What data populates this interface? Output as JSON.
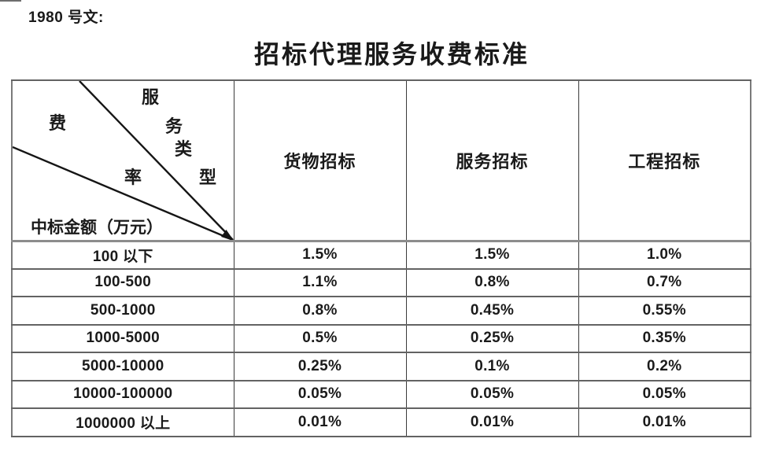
{
  "page": {
    "doc_ref": "1980 号文:",
    "title": "招标代理服务收费标准",
    "ink_color": "#1a1a1a",
    "background_color": "#ffffff"
  },
  "table": {
    "corner": {
      "fee_char": "费",
      "rate_char": "率",
      "service_type_chars": [
        "服",
        "务",
        "类",
        "型"
      ],
      "row_axis_label": "中标金额（万元）"
    },
    "columns": [
      "货物招标",
      "服务招标",
      "工程招标"
    ],
    "rows": [
      {
        "range": "100 以下",
        "values": [
          "1.5%",
          "1.5%",
          "1.0%"
        ]
      },
      {
        "range": "100-500",
        "values": [
          "1.1%",
          "0.8%",
          "0.7%"
        ]
      },
      {
        "range": "500-1000",
        "values": [
          "0.8%",
          "0.45%",
          "0.55%"
        ]
      },
      {
        "range": "1000-5000",
        "values": [
          "0.5%",
          "0.25%",
          "0.35%"
        ]
      },
      {
        "range": "5000-10000",
        "values": [
          "0.25%",
          "0.1%",
          "0.2%"
        ]
      },
      {
        "range": "10000-100000",
        "values": [
          "0.05%",
          "0.05%",
          "0.05%"
        ]
      },
      {
        "range": "1000000 以上",
        "values": [
          "0.01%",
          "0.01%",
          "0.01%"
        ]
      }
    ]
  }
}
